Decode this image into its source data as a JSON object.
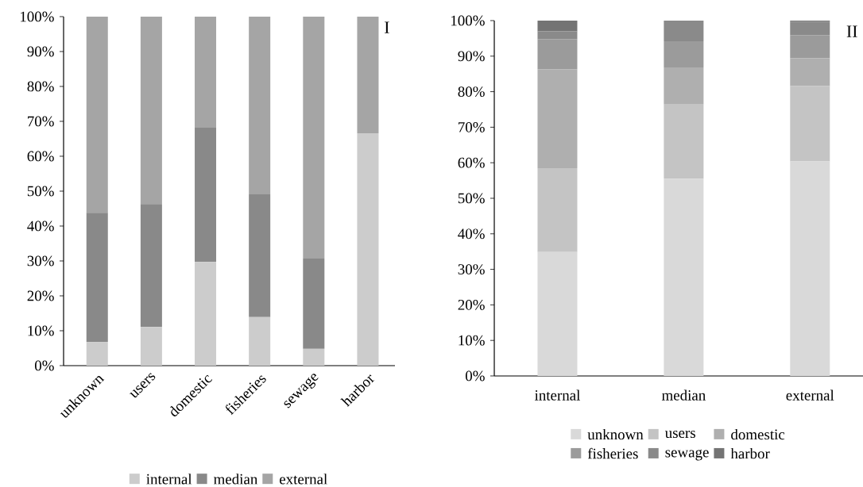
{
  "chart_data": [
    {
      "type": "bar",
      "stacked": true,
      "categories": [
        "unknown",
        "users",
        "domestic",
        "fisheries",
        "sewage",
        "harbor"
      ],
      "series": [
        {
          "name": "internal",
          "color": "#cccccc",
          "values": [
            6.8,
            11.1,
            29.7,
            13.9,
            4.8,
            66.6
          ]
        },
        {
          "name": "median",
          "color": "#898989",
          "values": [
            37.0,
            35.2,
            38.5,
            35.2,
            25.9,
            0
          ]
        },
        {
          "name": "external",
          "color": "#a5a5a5",
          "values": [
            56.2,
            53.7,
            31.8,
            50.9,
            69.3,
            33.4
          ]
        }
      ],
      "ylim": [
        0,
        100
      ],
      "yticks": [
        {
          "value": 0,
          "label": "0%"
        },
        {
          "value": 10,
          "label": "10%"
        },
        {
          "value": 20,
          "label": "20%"
        },
        {
          "value": 30,
          "label": "30%"
        },
        {
          "value": 40,
          "label": "40%"
        },
        {
          "value": 50,
          "label": "50%"
        },
        {
          "value": 60,
          "label": "60%"
        },
        {
          "value": 70,
          "label": "70%"
        },
        {
          "value": 80,
          "label": "80%"
        },
        {
          "value": 90,
          "label": "90%"
        },
        {
          "value": 100,
          "label": "100%"
        }
      ],
      "annotations": [
        "I"
      ],
      "legend": "bottom"
    },
    {
      "type": "bar",
      "stacked": true,
      "categories": [
        "internal",
        "median",
        "external"
      ],
      "series": [
        {
          "name": "unknown",
          "color": "#d9d9d9",
          "values": [
            34.9,
            55.5,
            60.4
          ]
        },
        {
          "name": "users",
          "color": "#c4c4c4",
          "values": [
            23.6,
            20.9,
            21.2
          ]
        },
        {
          "name": "domestic",
          "color": "#afafaf",
          "values": [
            27.8,
            10.4,
            7.8
          ]
        },
        {
          "name": "fisheries",
          "color": "#9b9b9b",
          "values": [
            8.5,
            7.4,
            6.5
          ]
        },
        {
          "name": "sewage",
          "color": "#8a8a8a",
          "values": [
            2.2,
            5.8,
            3.8
          ]
        },
        {
          "name": "harbor",
          "color": "#747474",
          "values": [
            3.0,
            0,
            0.3
          ]
        }
      ],
      "ylim": [
        0,
        100
      ],
      "yticks": [
        {
          "value": 0,
          "label": "0%"
        },
        {
          "value": 10,
          "label": "10%"
        },
        {
          "value": 20,
          "label": "20%"
        },
        {
          "value": 30,
          "label": "30%"
        },
        {
          "value": 40,
          "label": "40%"
        },
        {
          "value": 50,
          "label": "50%"
        },
        {
          "value": 60,
          "label": "60%"
        },
        {
          "value": 70,
          "label": "70%"
        },
        {
          "value": 80,
          "label": "80%"
        },
        {
          "value": 90,
          "label": "90%"
        },
        {
          "value": 100,
          "label": "100%"
        }
      ],
      "annotations": [
        "II"
      ],
      "legend": "bottom"
    }
  ]
}
